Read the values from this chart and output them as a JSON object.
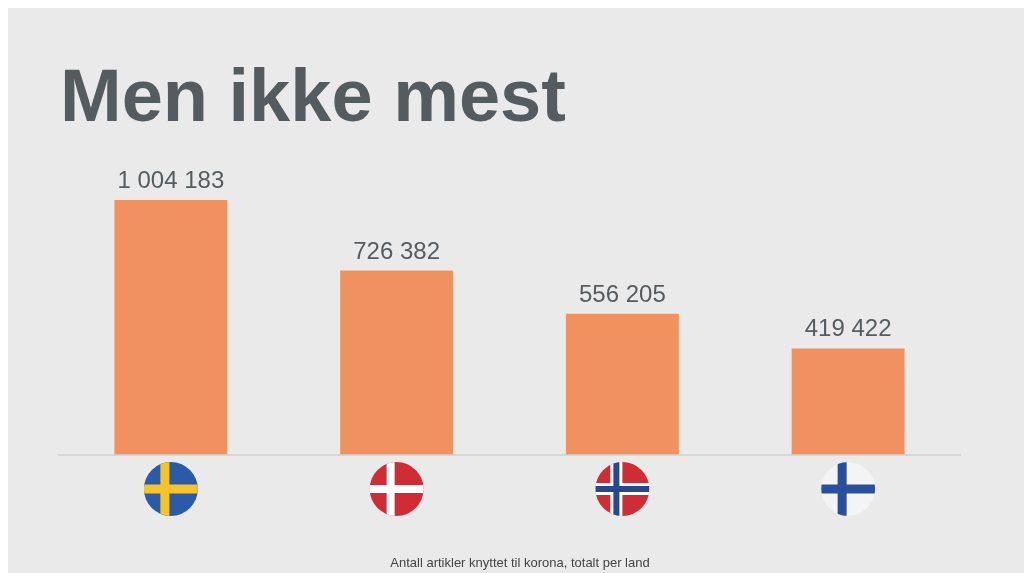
{
  "chart_data": {
    "type": "bar",
    "title": "Men ikke mest",
    "categories": [
      null,
      null,
      null,
      null
    ],
    "values": [
      1004183,
      726382,
      556205,
      419422
    ],
    "value_labels": [
      "1 004 183",
      "726 382",
      "556 205",
      "419 422"
    ],
    "color": "#f0915f",
    "annotations": [
      "Antall artikler knyttet til korona, totalt per land"
    ]
  }
}
